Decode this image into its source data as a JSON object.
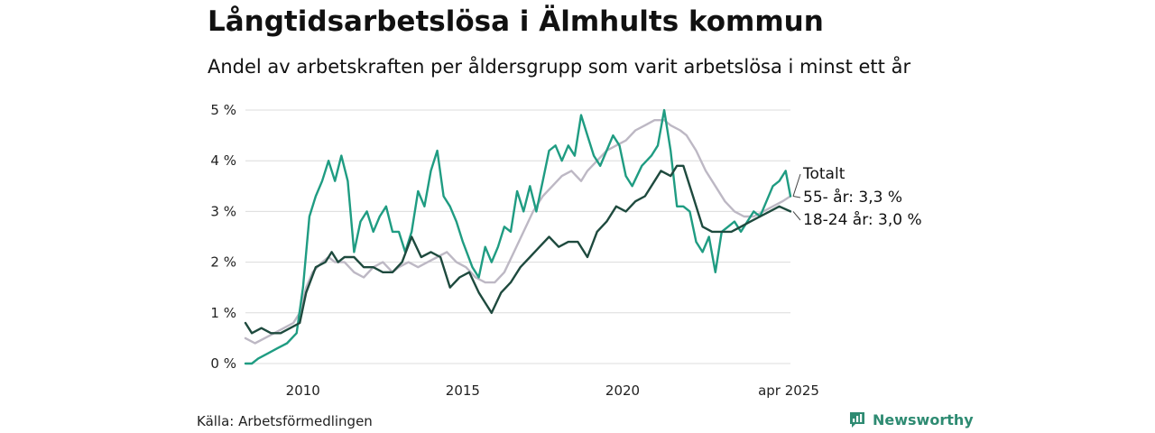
{
  "header": {
    "title": "Långtidsarbetslösa i Älmhults kommun",
    "subtitle": "Andel av arbetskraften per åldersgrupp som varit arbetslösa i minst ett år"
  },
  "footer": {
    "source": "Källa: Arbetsförmedlingen",
    "brand": "Newsworthy",
    "brand_icon": "bar-chart-speech-bubble-icon",
    "brand_color": "#2e8b72"
  },
  "chart_data": {
    "type": "line",
    "x_range": [
      2008.2,
      2025.25
    ],
    "ylim": [
      0,
      5
    ],
    "y_ticks": [
      0,
      1,
      2,
      3,
      4,
      5
    ],
    "y_tick_labels": [
      "0 %",
      "1 %",
      "2 %",
      "3 %",
      "4 %",
      "5 %"
    ],
    "x_ticks": [
      2010,
      2015,
      2020,
      2025.25
    ],
    "x_tick_labels": [
      "2010",
      "2015",
      "2020",
      "apr 2025"
    ],
    "grid": true,
    "legend": "direct labels at line ends",
    "series": [
      {
        "name": "55- år",
        "end_label": "55- år: 3,3 %",
        "color": "#bdb8c4",
        "points": [
          [
            2008.2,
            0.5
          ],
          [
            2008.5,
            0.4
          ],
          [
            2008.8,
            0.5
          ],
          [
            2009.1,
            0.6
          ],
          [
            2009.4,
            0.7
          ],
          [
            2009.7,
            0.8
          ],
          [
            2009.9,
            1.0
          ],
          [
            2010.1,
            1.5
          ],
          [
            2010.3,
            1.8
          ],
          [
            2010.6,
            2.0
          ],
          [
            2010.8,
            2.1
          ],
          [
            2011.0,
            2.0
          ],
          [
            2011.3,
            2.0
          ],
          [
            2011.6,
            1.8
          ],
          [
            2011.9,
            1.7
          ],
          [
            2012.2,
            1.9
          ],
          [
            2012.5,
            2.0
          ],
          [
            2012.8,
            1.8
          ],
          [
            2013.0,
            1.9
          ],
          [
            2013.3,
            2.0
          ],
          [
            2013.6,
            1.9
          ],
          [
            2013.9,
            2.0
          ],
          [
            2014.2,
            2.1
          ],
          [
            2014.5,
            2.2
          ],
          [
            2014.8,
            2.0
          ],
          [
            2015.1,
            1.9
          ],
          [
            2015.4,
            1.7
          ],
          [
            2015.7,
            1.6
          ],
          [
            2016.0,
            1.6
          ],
          [
            2016.3,
            1.8
          ],
          [
            2016.6,
            2.2
          ],
          [
            2016.9,
            2.6
          ],
          [
            2017.2,
            3.0
          ],
          [
            2017.5,
            3.3
          ],
          [
            2017.8,
            3.5
          ],
          [
            2018.1,
            3.7
          ],
          [
            2018.4,
            3.8
          ],
          [
            2018.7,
            3.6
          ],
          [
            2018.9,
            3.8
          ],
          [
            2019.2,
            4.0
          ],
          [
            2019.5,
            4.2
          ],
          [
            2019.8,
            4.3
          ],
          [
            2020.1,
            4.4
          ],
          [
            2020.4,
            4.6
          ],
          [
            2020.7,
            4.7
          ],
          [
            2021.0,
            4.8
          ],
          [
            2021.3,
            4.8
          ],
          [
            2021.5,
            4.7
          ],
          [
            2021.8,
            4.6
          ],
          [
            2022.0,
            4.5
          ],
          [
            2022.3,
            4.2
          ],
          [
            2022.6,
            3.8
          ],
          [
            2022.9,
            3.5
          ],
          [
            2023.2,
            3.2
          ],
          [
            2023.5,
            3.0
          ],
          [
            2023.8,
            2.9
          ],
          [
            2024.1,
            2.9
          ],
          [
            2024.4,
            3.0
          ],
          [
            2024.7,
            3.1
          ],
          [
            2025.0,
            3.2
          ],
          [
            2025.25,
            3.3
          ]
        ]
      },
      {
        "name": "Totalt",
        "end_label": "Totalt",
        "color": "#1f9c82",
        "points": [
          [
            2008.2,
            0.0
          ],
          [
            2008.4,
            0.0
          ],
          [
            2008.6,
            0.1
          ],
          [
            2008.9,
            0.2
          ],
          [
            2009.2,
            0.3
          ],
          [
            2009.5,
            0.4
          ],
          [
            2009.8,
            0.6
          ],
          [
            2010.0,
            1.5
          ],
          [
            2010.2,
            2.9
          ],
          [
            2010.4,
            3.3
          ],
          [
            2010.6,
            3.6
          ],
          [
            2010.8,
            4.0
          ],
          [
            2011.0,
            3.6
          ],
          [
            2011.2,
            4.1
          ],
          [
            2011.4,
            3.6
          ],
          [
            2011.6,
            2.2
          ],
          [
            2011.8,
            2.8
          ],
          [
            2012.0,
            3.0
          ],
          [
            2012.2,
            2.6
          ],
          [
            2012.4,
            2.9
          ],
          [
            2012.6,
            3.1
          ],
          [
            2012.8,
            2.6
          ],
          [
            2013.0,
            2.6
          ],
          [
            2013.2,
            2.2
          ],
          [
            2013.4,
            2.6
          ],
          [
            2013.6,
            3.4
          ],
          [
            2013.8,
            3.1
          ],
          [
            2014.0,
            3.8
          ],
          [
            2014.2,
            4.2
          ],
          [
            2014.4,
            3.3
          ],
          [
            2014.6,
            3.1
          ],
          [
            2014.8,
            2.8
          ],
          [
            2015.0,
            2.4
          ],
          [
            2015.3,
            1.9
          ],
          [
            2015.5,
            1.7
          ],
          [
            2015.7,
            2.3
          ],
          [
            2015.9,
            2.0
          ],
          [
            2016.1,
            2.3
          ],
          [
            2016.3,
            2.7
          ],
          [
            2016.5,
            2.6
          ],
          [
            2016.7,
            3.4
          ],
          [
            2016.9,
            3.0
          ],
          [
            2017.1,
            3.5
          ],
          [
            2017.3,
            3.0
          ],
          [
            2017.5,
            3.6
          ],
          [
            2017.7,
            4.2
          ],
          [
            2017.9,
            4.3
          ],
          [
            2018.1,
            4.0
          ],
          [
            2018.3,
            4.3
          ],
          [
            2018.5,
            4.1
          ],
          [
            2018.7,
            4.9
          ],
          [
            2018.9,
            4.5
          ],
          [
            2019.1,
            4.1
          ],
          [
            2019.3,
            3.9
          ],
          [
            2019.5,
            4.2
          ],
          [
            2019.7,
            4.5
          ],
          [
            2019.9,
            4.3
          ],
          [
            2020.1,
            3.7
          ],
          [
            2020.3,
            3.5
          ],
          [
            2020.6,
            3.9
          ],
          [
            2020.9,
            4.1
          ],
          [
            2021.1,
            4.3
          ],
          [
            2021.3,
            5.0
          ],
          [
            2021.5,
            4.2
          ],
          [
            2021.7,
            3.1
          ],
          [
            2021.9,
            3.1
          ],
          [
            2022.1,
            3.0
          ],
          [
            2022.3,
            2.4
          ],
          [
            2022.5,
            2.2
          ],
          [
            2022.7,
            2.5
          ],
          [
            2022.9,
            1.8
          ],
          [
            2023.1,
            2.6
          ],
          [
            2023.3,
            2.7
          ],
          [
            2023.5,
            2.8
          ],
          [
            2023.7,
            2.6
          ],
          [
            2023.9,
            2.8
          ],
          [
            2024.1,
            3.0
          ],
          [
            2024.3,
            2.9
          ],
          [
            2024.5,
            3.2
          ],
          [
            2024.7,
            3.5
          ],
          [
            2024.9,
            3.6
          ],
          [
            2025.1,
            3.8
          ],
          [
            2025.25,
            3.3
          ]
        ]
      },
      {
        "name": "18-24 år",
        "end_label": "18-24 år: 3,0 %",
        "color": "#1e4a3e",
        "points": [
          [
            2008.2,
            0.8
          ],
          [
            2008.4,
            0.6
          ],
          [
            2008.7,
            0.7
          ],
          [
            2009.0,
            0.6
          ],
          [
            2009.3,
            0.6
          ],
          [
            2009.6,
            0.7
          ],
          [
            2009.9,
            0.8
          ],
          [
            2010.1,
            1.4
          ],
          [
            2010.4,
            1.9
          ],
          [
            2010.7,
            2.0
          ],
          [
            2010.9,
            2.2
          ],
          [
            2011.1,
            2.0
          ],
          [
            2011.3,
            2.1
          ],
          [
            2011.6,
            2.1
          ],
          [
            2011.9,
            1.9
          ],
          [
            2012.2,
            1.9
          ],
          [
            2012.5,
            1.8
          ],
          [
            2012.8,
            1.8
          ],
          [
            2013.1,
            2.0
          ],
          [
            2013.4,
            2.5
          ],
          [
            2013.7,
            2.1
          ],
          [
            2014.0,
            2.2
          ],
          [
            2014.3,
            2.1
          ],
          [
            2014.6,
            1.5
          ],
          [
            2014.9,
            1.7
          ],
          [
            2015.2,
            1.8
          ],
          [
            2015.5,
            1.4
          ],
          [
            2015.7,
            1.2
          ],
          [
            2015.9,
            1.0
          ],
          [
            2016.2,
            1.4
          ],
          [
            2016.5,
            1.6
          ],
          [
            2016.8,
            1.9
          ],
          [
            2017.1,
            2.1
          ],
          [
            2017.4,
            2.3
          ],
          [
            2017.7,
            2.5
          ],
          [
            2018.0,
            2.3
          ],
          [
            2018.3,
            2.4
          ],
          [
            2018.6,
            2.4
          ],
          [
            2018.9,
            2.1
          ],
          [
            2019.2,
            2.6
          ],
          [
            2019.5,
            2.8
          ],
          [
            2019.8,
            3.1
          ],
          [
            2020.1,
            3.0
          ],
          [
            2020.4,
            3.2
          ],
          [
            2020.7,
            3.3
          ],
          [
            2021.0,
            3.6
          ],
          [
            2021.2,
            3.8
          ],
          [
            2021.5,
            3.7
          ],
          [
            2021.7,
            3.9
          ],
          [
            2021.9,
            3.9
          ],
          [
            2022.2,
            3.3
          ],
          [
            2022.5,
            2.7
          ],
          [
            2022.8,
            2.6
          ],
          [
            2023.1,
            2.6
          ],
          [
            2023.4,
            2.6
          ],
          [
            2023.7,
            2.7
          ],
          [
            2024.0,
            2.8
          ],
          [
            2024.3,
            2.9
          ],
          [
            2024.6,
            3.0
          ],
          [
            2024.9,
            3.1
          ],
          [
            2025.25,
            3.0
          ]
        ]
      }
    ]
  }
}
